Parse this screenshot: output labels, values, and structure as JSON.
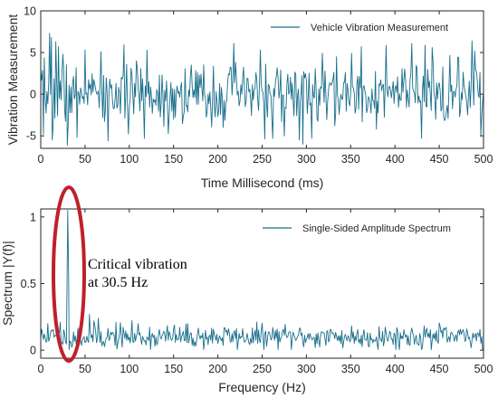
{
  "chart_data": [
    {
      "type": "line",
      "xlabel": "Time Millisecond (ms)",
      "ylabel": "Vibration Measurement",
      "xlim": [
        0,
        500
      ],
      "ylim": [
        -6.5,
        10
      ],
      "xticks": [
        "0",
        "50",
        "100",
        "150",
        "200",
        "250",
        "300",
        "350",
        "400",
        "450",
        "500"
      ],
      "yticks": [
        "-5",
        "0",
        "5",
        "10"
      ],
      "ytick_values": [
        -5,
        0,
        5,
        10
      ],
      "legend_position": "top-right",
      "series": [
        {
          "name": "Vehicle Vibration Measurement",
          "color": "#1a6f8c",
          "style": "noisy random signal, mean about 0, mostly between -5 and 5",
          "x_start": 0,
          "x_end": 500,
          "samples": 500,
          "amplitude": 1.9,
          "seed": 7,
          "peaks": [
            [
              3,
              -4.8
            ],
            [
              10,
              7.3
            ],
            [
              12,
              6.8
            ],
            [
              13,
              -5.5
            ],
            [
              17,
              6.3
            ],
            [
              20,
              5.7
            ],
            [
              25,
              4.8
            ],
            [
              30,
              -6.1
            ],
            [
              41,
              -5.2
            ],
            [
              50,
              5.3
            ],
            [
              76,
              -5.6
            ],
            [
              120,
              5.3
            ],
            [
              218,
              6.1
            ],
            [
              248,
              5.3
            ],
            [
              262,
              -5.3
            ],
            [
              292,
              -5.5
            ],
            [
              296,
              -6.0
            ],
            [
              306,
              -5.3
            ],
            [
              351,
              4.9
            ],
            [
              362,
              5.7
            ],
            [
              419,
              6.1
            ],
            [
              430,
              -5.3
            ],
            [
              442,
              5.6
            ],
            [
              487,
              6.4
            ],
            [
              490,
              5.2
            ],
            [
              497,
              -5.0
            ]
          ]
        }
      ]
    },
    {
      "type": "line",
      "xlabel": "Frequency (Hz)",
      "ylabel": "Spectrum |Y(f)|",
      "xlim": [
        0,
        500
      ],
      "ylim": [
        -0.06,
        1.06
      ],
      "xticks": [
        "0",
        "50",
        "100",
        "150",
        "200",
        "250",
        "300",
        "350",
        "400",
        "450",
        "500"
      ],
      "yticks": [
        "0",
        "0.5",
        "1"
      ],
      "ytick_values": [
        0,
        0.5,
        1
      ],
      "legend_position": "top-right",
      "series": [
        {
          "name": "Single-Sided Amplitude Spectrum",
          "color": "#1a6f8c",
          "style": "noise floor between 0 and about 0.2 with a single spike at 30.5 Hz",
          "x_start": 0,
          "x_end": 500,
          "samples": 500,
          "baseline": 0.1,
          "amplitude": 0.045,
          "seed": 11,
          "peaks": [
            [
              30.5,
              1.05
            ],
            [
              31.5,
              0.55
            ],
            [
              8,
              0.2
            ],
            [
              22,
              0.21
            ],
            [
              55,
              0.27
            ],
            [
              60,
              0.22
            ],
            [
              65,
              0.24
            ],
            [
              85,
              0.21
            ],
            [
              110,
              0.2
            ],
            [
              150,
              0.16
            ],
            [
              210,
              0.15
            ],
            [
              330,
              0.13
            ],
            [
              445,
              0.13
            ],
            [
              475,
              0.12
            ],
            [
              493,
              0.13
            ]
          ]
        }
      ],
      "annotation": {
        "lines": [
          "Critical vibration",
          "at 30.5 Hz"
        ],
        "target_x": 30.5,
        "ellipse_color": "#c0202a"
      }
    }
  ]
}
